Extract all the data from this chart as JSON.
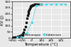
{
  "title": "",
  "xlabel": "Temperature (°C)",
  "ylabel": "KV (J)",
  "xlim": [
    -200,
    400
  ],
  "ylim": [
    0,
    300
  ],
  "xticks": [
    -200,
    -100,
    0,
    100,
    200,
    300
  ],
  "yticks": [
    0,
    50,
    100,
    150,
    200,
    250,
    300
  ],
  "romanque_x": [
    -200,
    -185,
    -175,
    -165,
    -155,
    -145,
    -135,
    -125,
    -115,
    -105,
    -95,
    -85,
    -75,
    -65,
    -55,
    -45,
    -40,
    -35,
    -30,
    -25,
    -20,
    -15,
    -10,
    -5,
    0,
    5,
    10,
    15,
    20,
    30,
    40,
    50,
    70,
    100
  ],
  "romanque_y": [
    3,
    5,
    6,
    8,
    9,
    11,
    13,
    16,
    20,
    26,
    35,
    48,
    68,
    95,
    130,
    162,
    185,
    205,
    220,
    235,
    245,
    255,
    260,
    265,
    268,
    270,
    272,
    274,
    275,
    277,
    278,
    279,
    280,
    280
  ],
  "liddenses_x": [
    -150,
    -100,
    -50,
    0,
    50,
    100,
    150,
    200,
    250,
    300,
    350
  ],
  "liddenses_y": [
    5,
    15,
    40,
    130,
    265,
    278,
    280,
    280,
    280,
    280,
    280
  ],
  "romanque_color": "#1a1a1a",
  "liddenses_color": "#4dd9e8",
  "marker_romanque": "s",
  "marker_liddenses": "D",
  "legend_romanque": "Romanque",
  "legend_liddenses": "Liddenses",
  "figsize": [
    1.0,
    0.67
  ],
  "dpi": 100,
  "fontsize": 4,
  "tick_fontsize": 3.2,
  "legend_fontsize": 3.2,
  "bg_color": "#e8e8e8",
  "grid_color": "#ffffff",
  "markersize": 1.0,
  "linewidth": 0.0
}
